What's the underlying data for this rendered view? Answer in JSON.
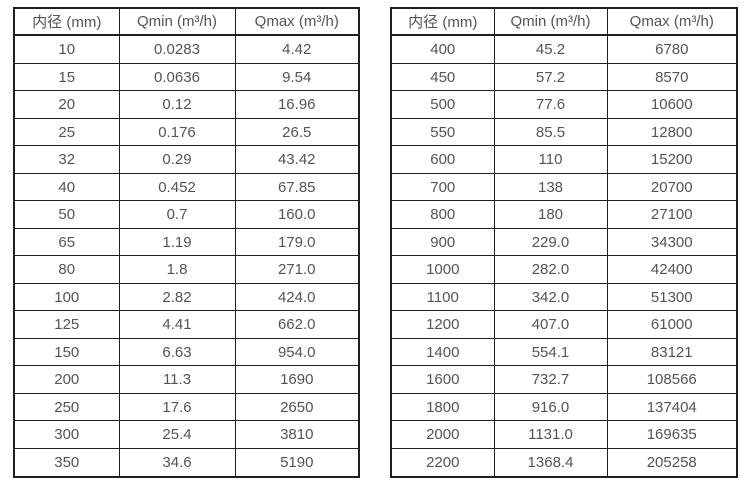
{
  "page": {
    "background": "#ffffff",
    "text_color": "#545454",
    "border_color": "#1f1f1f"
  },
  "tables": [
    {
      "id": "small-diameter-flow-table",
      "headers": [
        "内径 (mm)",
        "Qmin (m³/h)",
        "Qmax (m³/h)"
      ],
      "rows": [
        [
          "10",
          "0.0283",
          "4.42"
        ],
        [
          "15",
          "0.0636",
          "9.54"
        ],
        [
          "20",
          "0.12",
          "16.96"
        ],
        [
          "25",
          "0.176",
          "26.5"
        ],
        [
          "32",
          "0.29",
          "43.42"
        ],
        [
          "40",
          "0.452",
          "67.85"
        ],
        [
          "50",
          "0.7",
          "160.0"
        ],
        [
          "65",
          "1.19",
          "179.0"
        ],
        [
          "80",
          "1.8",
          "271.0"
        ],
        [
          "100",
          "2.82",
          "424.0"
        ],
        [
          "125",
          "4.41",
          "662.0"
        ],
        [
          "150",
          "6.63",
          "954.0"
        ],
        [
          "200",
          "11.3",
          "1690"
        ],
        [
          "250",
          "17.6",
          "2650"
        ],
        [
          "300",
          "25.4",
          "3810"
        ],
        [
          "350",
          "34.6",
          "5190"
        ]
      ]
    },
    {
      "id": "large-diameter-flow-table",
      "headers": [
        "内径 (mm)",
        "Qmin (m³/h)",
        "Qmax (m³/h)"
      ],
      "rows": [
        [
          "400",
          "45.2",
          "6780"
        ],
        [
          "450",
          "57.2",
          "8570"
        ],
        [
          "500",
          "77.6",
          "10600"
        ],
        [
          "550",
          "85.5",
          "12800"
        ],
        [
          "600",
          "110",
          "15200"
        ],
        [
          "700",
          "138",
          "20700"
        ],
        [
          "800",
          "180",
          "27100"
        ],
        [
          "900",
          "229.0",
          "34300"
        ],
        [
          "1000",
          "282.0",
          "42400"
        ],
        [
          "1100",
          "342.0",
          "51300"
        ],
        [
          "1200",
          "407.0",
          "61000"
        ],
        [
          "1400",
          "554.1",
          "83121"
        ],
        [
          "1600",
          "732.7",
          "108566"
        ],
        [
          "1800",
          "916.0",
          "137404"
        ],
        [
          "2000",
          "1131.0",
          "169635"
        ],
        [
          "2200",
          "1368.4",
          "205258"
        ]
      ]
    }
  ]
}
